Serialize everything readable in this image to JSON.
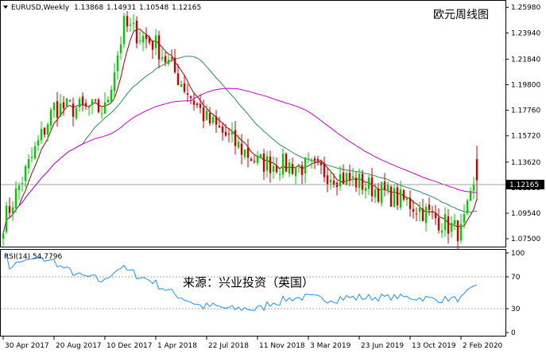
{
  "chart_data": {
    "type": "candlestick",
    "symbol": "EURUSD,Weekly",
    "ohlc": [
      "1.13868",
      "1.14931",
      "1.10548",
      "1.12165"
    ],
    "title_cn": "欧元周线图",
    "current_price_label": "1.12165",
    "price_ticks": [
      "1.25980",
      "1.23940",
      "1.21840",
      "1.19800",
      "1.17760",
      "1.15720",
      "1.13620",
      "1.11580",
      "1.09540",
      "1.07500"
    ],
    "date_ticks": [
      "30 Apr 2017",
      "20 Aug 2017",
      "10 Dec 2017",
      "1 Apr 2018",
      "22 Jul 2018",
      "11 Nov 2018",
      "3 Mar 2019",
      "23 Jun 2019",
      "13 Oct 2019",
      "2 Feb 2020"
    ],
    "ylim": [
      1.07,
      1.2625
    ],
    "sma_periods_note": "",
    "colors": {
      "bull": "#00cc00",
      "bear": "#cc0000",
      "ma_fast": "#a00000",
      "ma_mid": "#2e8b57",
      "ma_slow": "#cc00cc",
      "rsi": "#1e90ff",
      "level": "#808080"
    },
    "key_prices": [
      {
        "date": "2017-04-30",
        "close": 1.088
      },
      {
        "date": "2017-08-20",
        "close": 1.18
      },
      {
        "date": "2017-12-10",
        "close": 1.178
      },
      {
        "date": "2018-01-21",
        "close": 1.245
      },
      {
        "date": "2018-04-01",
        "close": 1.23
      },
      {
        "date": "2018-07-22",
        "close": 1.17
      },
      {
        "date": "2018-11-11",
        "close": 1.136
      },
      {
        "date": "2019-03-03",
        "close": 1.132
      },
      {
        "date": "2019-06-23",
        "close": 1.12
      },
      {
        "date": "2019-10-13",
        "close": 1.103
      },
      {
        "date": "2020-02-02",
        "close": 1.08
      },
      {
        "date": "2020-03-08",
        "close": 1.12165
      }
    ],
    "rsi": {
      "label": "RSI(14) 54.7796",
      "levels": [
        70,
        30
      ],
      "ticks": [
        "100",
        "70",
        "30",
        "0"
      ],
      "ylim": [
        0,
        100
      ]
    },
    "watermark": "来源：兴业投资（英国）"
  }
}
